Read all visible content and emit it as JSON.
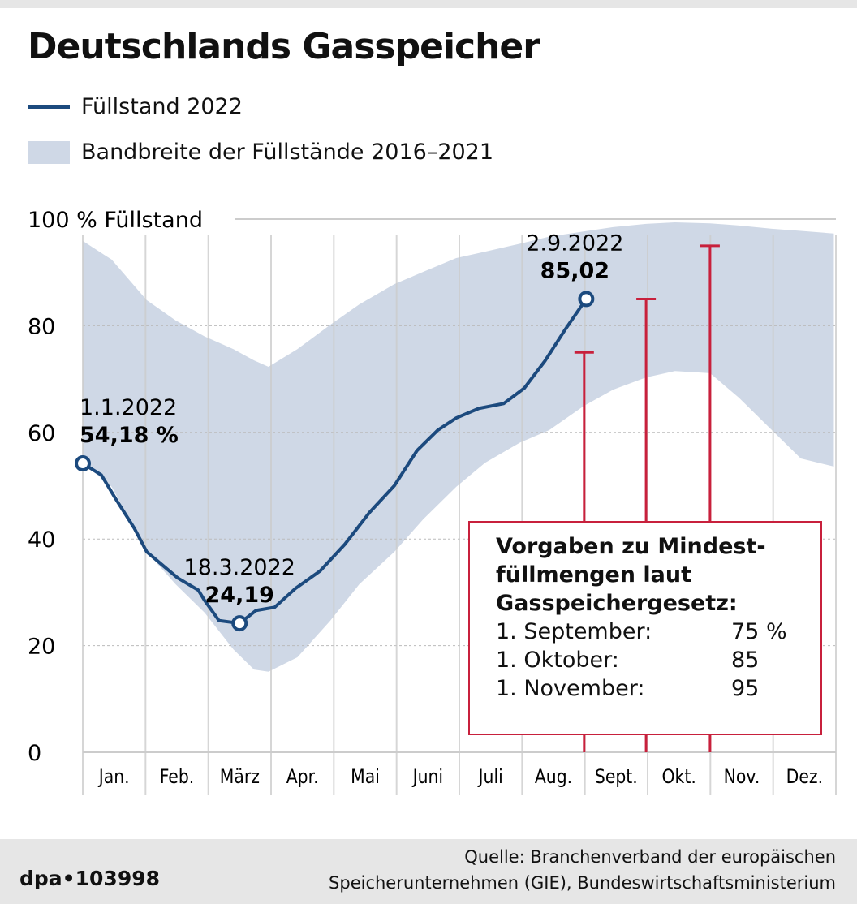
{
  "title": "Deutschlands Gasspeicher",
  "legend": {
    "line": "Füllstand 2022",
    "band": "Bandbreite der Füllstände 2016–2021"
  },
  "colors": {
    "line": "#1c4a7e",
    "band": "#cfd8e6",
    "target": "#c8203c",
    "grid": "#cccccc"
  },
  "chart_data": {
    "type": "area",
    "ylabel": "100 % Füllstand",
    "ylim": [
      0,
      100
    ],
    "yticks": [
      "0",
      "20",
      "40",
      "60",
      "80"
    ],
    "xlim": [
      "2022-01-01",
      "2022-12-31"
    ],
    "months": [
      "Jan.",
      "Feb.",
      "März",
      "Apr.",
      "Mai",
      "Juni",
      "Juli",
      "Aug.",
      "Sept.",
      "Okt.",
      "Nov.",
      "Dez."
    ],
    "grid": true,
    "series": [
      {
        "name": "Füllstand 2022",
        "type": "line",
        "x": [
          "2022-01-01",
          "2022-01-10",
          "2022-01-17",
          "2022-01-26",
          "2022-02-01",
          "2022-02-08",
          "2022-02-16",
          "2022-02-26",
          "2022-03-01",
          "2022-03-08",
          "2022-03-18",
          "2022-03-26",
          "2022-04-04",
          "2022-04-14",
          "2022-04-26",
          "2022-05-08",
          "2022-05-20",
          "2022-06-01",
          "2022-06-12",
          "2022-06-22",
          "2022-07-01",
          "2022-07-12",
          "2022-07-24",
          "2022-08-03",
          "2022-08-13",
          "2022-08-23",
          "2022-09-02"
        ],
        "y": [
          54.18,
          52,
          47.5,
          42,
          37.6,
          35.3,
          32.7,
          30.4,
          28.5,
          24.7,
          24.19,
          26.6,
          27.2,
          30.7,
          34,
          39,
          45,
          50,
          56.6,
          60.4,
          62.7,
          64.5,
          65.4,
          68.3,
          73.4,
          79.4,
          85.02
        ]
      },
      {
        "name": "Bandbreite der Füllstände 2016–2021",
        "type": "band",
        "x": [
          "2022-01-01",
          "2022-01-15",
          "2022-02-01",
          "2022-02-15",
          "2022-03-01",
          "2022-03-15",
          "2022-03-25",
          "2022-04-01",
          "2022-04-15",
          "2022-05-01",
          "2022-05-15",
          "2022-06-01",
          "2022-06-15",
          "2022-07-01",
          "2022-07-15",
          "2022-08-01",
          "2022-08-15",
          "2022-09-01",
          "2022-09-15",
          "2022-10-01",
          "2022-10-15",
          "2022-11-01",
          "2022-11-15",
          "2022-12-01",
          "2022-12-15",
          "2022-12-31"
        ],
        "upper": [
          95.9,
          92.4,
          84.8,
          81,
          78,
          75.6,
          73.5,
          72.3,
          75.6,
          80.2,
          84,
          87.8,
          90.1,
          92.7,
          93.9,
          95.4,
          96.7,
          97.7,
          98.5,
          99.1,
          99.4,
          99.2,
          98.8,
          98.2,
          97.8,
          97.3
        ],
        "lower": [
          54.3,
          49.8,
          37.6,
          31.5,
          26.2,
          19.3,
          15.5,
          15.1,
          17.8,
          24.7,
          31.5,
          37.6,
          43.7,
          49.8,
          54.3,
          58.1,
          60.4,
          65,
          68,
          70.3,
          71.5,
          71.1,
          66.5,
          60.4,
          55.1,
          53.6
        ]
      }
    ],
    "annotations": [
      {
        "date": "1.1.2022",
        "value": "54,18 %",
        "x": "2022-01-01",
        "y": 54.18
      },
      {
        "date": "18.3.2022",
        "value": "24,19",
        "x": "2022-03-18",
        "y": 24.19
      },
      {
        "date": "2.9.2022",
        "value": "85,02",
        "x": "2022-09-02",
        "y": 85.02
      }
    ],
    "targets": [
      {
        "x": "2022-09-01",
        "y": 75
      },
      {
        "x": "2022-10-01",
        "y": 85
      },
      {
        "x": "2022-11-01",
        "y": 95
      }
    ]
  },
  "targets_box": {
    "title": [
      "Vorgaben zu Mindest-",
      "füllmengen laut",
      "Gasspeichergesetz:"
    ],
    "rows": [
      {
        "label": "1. September:",
        "value": "75 %"
      },
      {
        "label": "1. Oktober:",
        "value": "85"
      },
      {
        "label": "1. November:",
        "value": "95"
      }
    ]
  },
  "footer": {
    "logo": "dpa•103998",
    "source": [
      "Quelle: Branchenverband der europäischen",
      "Speicherunternehmen (GIE), Bundeswirtschaftsministerium"
    ]
  }
}
